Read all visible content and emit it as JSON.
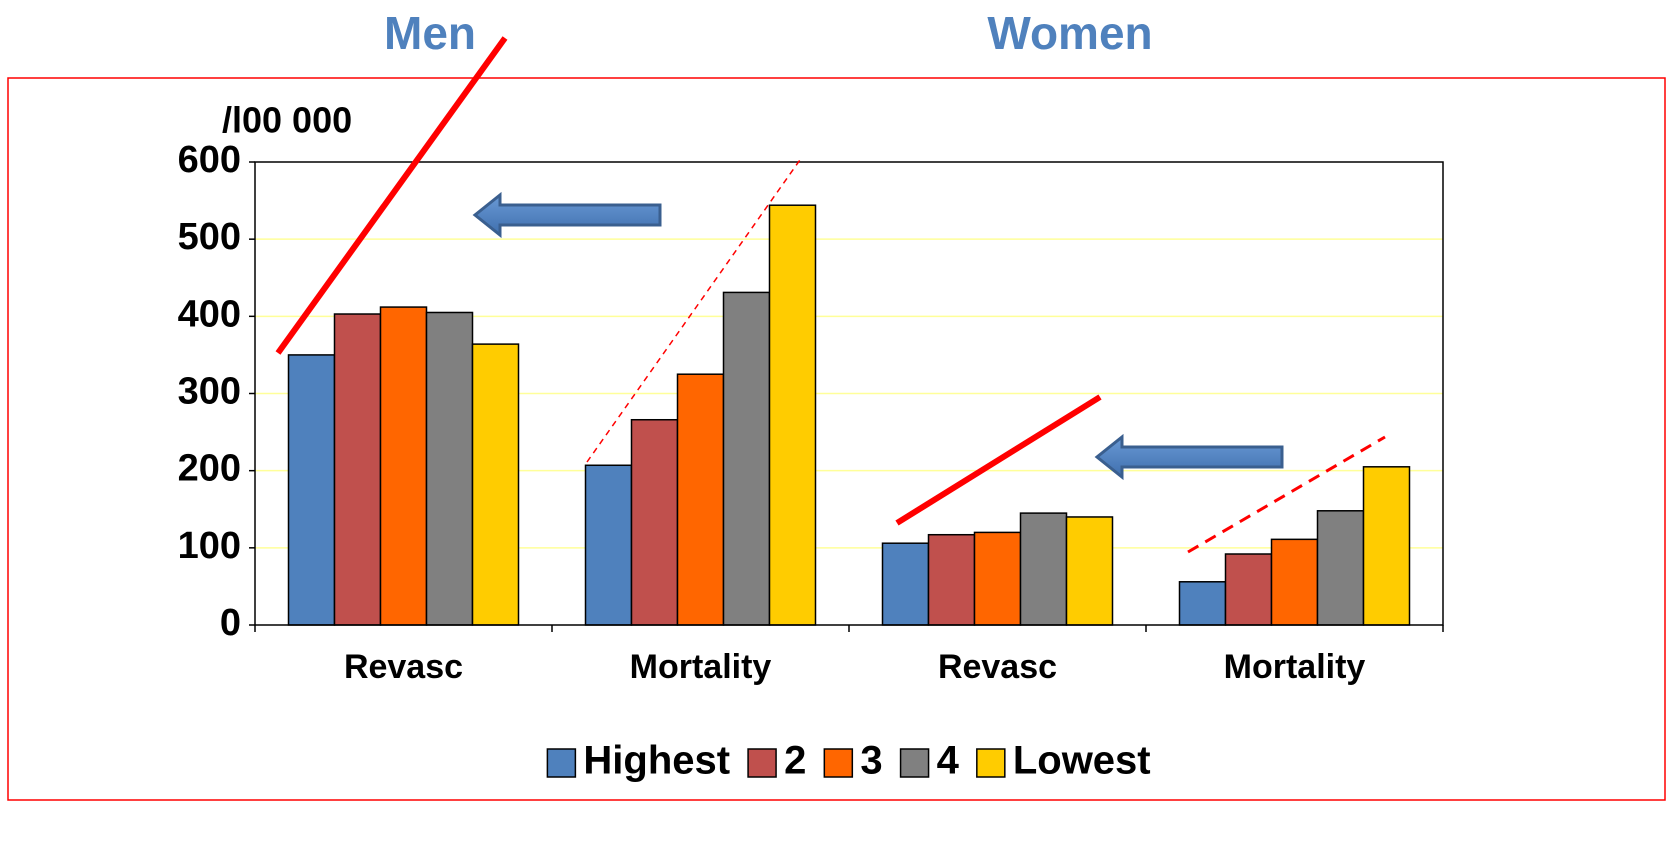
{
  "chart_data": {
    "type": "bar",
    "groups": [
      "Men",
      "Women"
    ],
    "y_label": "/l00 000",
    "categories": [
      "Revasc",
      "Mortality",
      "Revasc",
      "Mortality"
    ],
    "series": [
      {
        "name": "Highest",
        "color": "#4f81bd",
        "values": [
          350,
          207,
          106,
          56
        ]
      },
      {
        "name": "2",
        "color": "#c0504d",
        "values": [
          403,
          266,
          117,
          92
        ]
      },
      {
        "name": "3",
        "color": "#ff6600",
        "values": [
          412,
          325,
          120,
          111
        ]
      },
      {
        "name": "4",
        "color": "#808080",
        "values": [
          405,
          431,
          145,
          148
        ]
      },
      {
        "name": "Lowest",
        "color": "#ffcc00",
        "values": [
          364,
          544,
          140,
          205
        ]
      }
    ],
    "ylim": [
      0,
      600
    ],
    "yticks": [
      0,
      100,
      200,
      300,
      400,
      500,
      600
    ],
    "grid": true,
    "legend": "bottom"
  }
}
